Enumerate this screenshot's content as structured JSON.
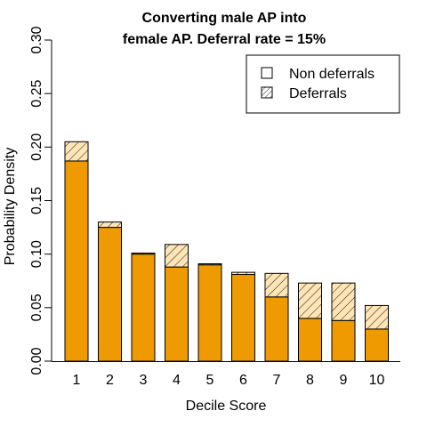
{
  "chart_data": {
    "type": "bar",
    "stacked": true,
    "title": "Converting male AP into\nfemale AP. Deferral rate = 15%",
    "title_lines": [
      "Converting male AP into",
      "female AP. Deferral rate = 15%"
    ],
    "xlabel": "Decile Score",
    "ylabel": "Probability Density",
    "categories": [
      "1",
      "2",
      "3",
      "4",
      "5",
      "6",
      "7",
      "8",
      "9",
      "10"
    ],
    "ylim": [
      0,
      0.3
    ],
    "yticks": [
      "0.00",
      "0.05",
      "0.10",
      "0.15",
      "0.20",
      "0.25",
      "0.30"
    ],
    "ytick_values": [
      0,
      0.05,
      0.1,
      0.15,
      0.2,
      0.25,
      0.3
    ],
    "series": [
      {
        "name": "Non deferrals",
        "color": "#EE9A00",
        "values": [
          0.187,
          0.125,
          0.1,
          0.088,
          0.09,
          0.081,
          0.06,
          0.04,
          0.038,
          0.03
        ]
      },
      {
        "name": "Deferrals",
        "color": "#FFE4B5",
        "pattern": "hatch",
        "values": [
          0.018,
          0.005,
          0.001,
          0.021,
          0.001,
          0.002,
          0.022,
          0.033,
          0.035,
          0.022
        ]
      }
    ],
    "legend": {
      "position": "top-right",
      "entries": [
        "Non deferrals",
        "Deferrals"
      ]
    },
    "grid": false
  }
}
